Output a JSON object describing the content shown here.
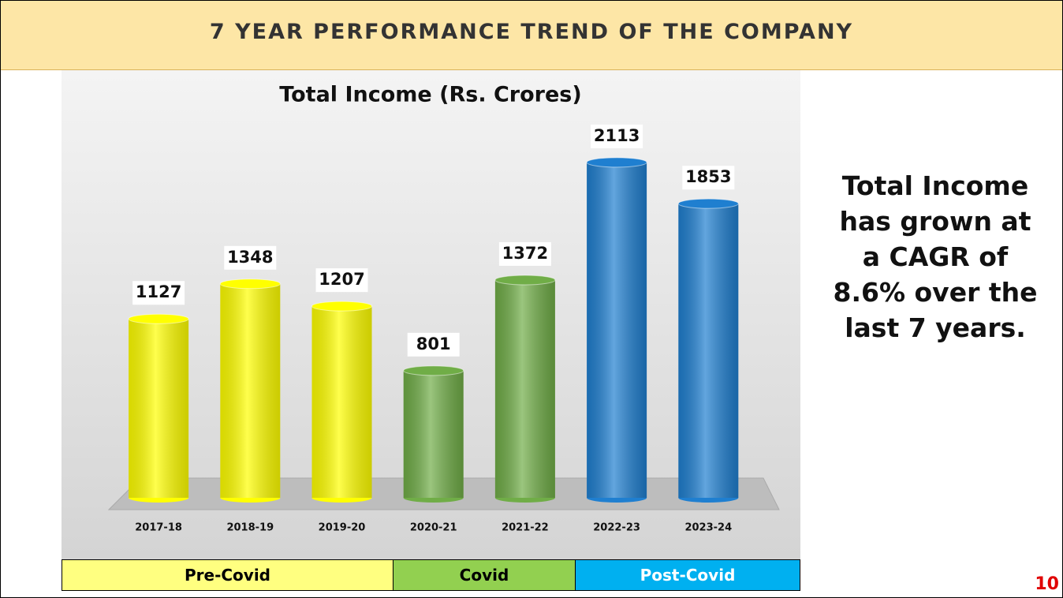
{
  "header": {
    "title": "7 YEAR PERFORMANCE TREND OF THE COMPANY"
  },
  "chart_data": {
    "type": "bar",
    "title": "Total Income (Rs. Crores)",
    "categories": [
      "2017-18",
      "2018-19",
      "2019-20",
      "2020-21",
      "2021-22",
      "2022-23",
      "2023-24"
    ],
    "values": [
      1127,
      1348,
      1207,
      801,
      1372,
      2113,
      1853
    ],
    "colors": [
      "#ffff00",
      "#ffff00",
      "#ffff00",
      "#70ad47",
      "#70ad47",
      "#1f7fd0",
      "#1f7fd0"
    ],
    "ylim": [
      0,
      2500
    ]
  },
  "phases": [
    {
      "label": "Pre-Covid",
      "color": "#ffff80"
    },
    {
      "label": "Covid",
      "color": "#92d050"
    },
    {
      "label": "Post-Covid",
      "color": "#00b0f0"
    }
  ],
  "note": "Total Income has grown at a CAGR of 8.6% over the last 7 years.",
  "page_number": "10"
}
